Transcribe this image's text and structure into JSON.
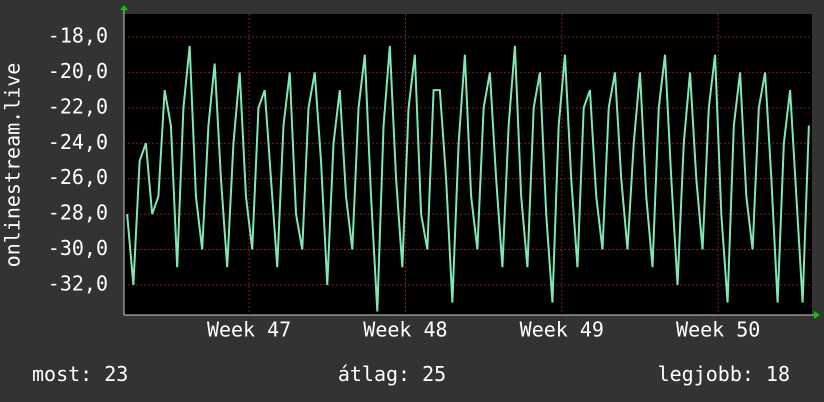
{
  "chart_data": {
    "type": "line",
    "y_label": "onlinestream.live",
    "x": [
      46.22,
      46.26,
      46.3,
      46.34,
      46.38,
      46.42,
      46.46,
      46.5,
      46.54,
      46.58,
      46.62,
      46.66,
      46.7,
      46.74,
      46.78,
      46.82,
      46.86,
      46.9,
      46.94,
      46.98,
      47.02,
      47.06,
      47.1,
      47.14,
      47.18,
      47.22,
      47.26,
      47.3,
      47.34,
      47.38,
      47.42,
      47.46,
      47.5,
      47.54,
      47.58,
      47.62,
      47.66,
      47.7,
      47.74,
      47.78,
      47.82,
      47.86,
      47.9,
      47.94,
      47.98,
      48.02,
      48.06,
      48.1,
      48.14,
      48.18,
      48.22,
      48.26,
      48.3,
      48.34,
      48.38,
      48.42,
      48.46,
      48.5,
      48.54,
      48.58,
      48.62,
      48.66,
      48.7,
      48.74,
      48.78,
      48.82,
      48.86,
      48.9,
      48.94,
      48.98,
      49.02,
      49.06,
      49.1,
      49.14,
      49.18,
      49.22,
      49.26,
      49.3,
      49.34,
      49.38,
      49.42,
      49.46,
      49.5,
      49.54,
      49.58,
      49.62,
      49.66,
      49.7,
      49.74,
      49.78,
      49.82,
      49.86,
      49.9,
      49.94,
      49.98,
      50.02,
      50.06,
      50.1,
      50.14,
      50.18,
      50.22,
      50.26,
      50.3,
      50.34,
      50.38,
      50.42,
      50.46,
      50.5,
      50.54,
      50.58
    ],
    "series": [
      {
        "color": "#7fe8b4",
        "values": [
          -28,
          -32,
          -25,
          -24,
          -28,
          -27,
          -21,
          -23,
          -31,
          -22,
          -18.5,
          -27,
          -30,
          -23,
          -19.5,
          -26,
          -31,
          -24,
          -20,
          -27,
          -30,
          -22,
          -21,
          -26,
          -31,
          -23,
          -20,
          -28,
          -30,
          -22,
          -20,
          -25,
          -32,
          -24,
          -21,
          -27,
          -30,
          -22,
          -19,
          -27,
          -33.5,
          -23,
          -18.5,
          -26,
          -31,
          -22,
          -19,
          -28,
          -30,
          -21,
          -21,
          -26,
          -33,
          -24,
          -19,
          -27,
          -30,
          -22,
          -20,
          -26,
          -31,
          -23,
          -18.5,
          -27,
          -31,
          -22,
          -20,
          -28,
          -33,
          -23,
          -19,
          -26,
          -31,
          -22,
          -21,
          -27,
          -30,
          -22,
          -20,
          -26,
          -30,
          -24,
          -20,
          -27,
          -31,
          -22,
          -19,
          -26,
          -32,
          -24,
          -20,
          -26,
          -30,
          -22,
          -19,
          -28,
          -33,
          -23,
          -20,
          -27,
          -30,
          -22,
          -20,
          -26,
          -33,
          -24,
          -21,
          -27,
          -33,
          -23
        ]
      }
    ],
    "xlim": [
      46.2,
      50.6
    ],
    "xticks": [
      {
        "value": 47,
        "label": "Week 47"
      },
      {
        "value": 48,
        "label": "Week 48"
      },
      {
        "value": 49,
        "label": "Week 49"
      },
      {
        "value": 50,
        "label": "Week 50"
      }
    ],
    "ylim": [
      -33.7,
      -16.7
    ],
    "yticks": [
      {
        "value": -32,
        "label": "-32,0"
      },
      {
        "value": -30,
        "label": "-30,0"
      },
      {
        "value": -28,
        "label": "-28,0"
      },
      {
        "value": -26,
        "label": "-26,0"
      },
      {
        "value": -24,
        "label": "-24,0"
      },
      {
        "value": -22,
        "label": "-22,0"
      },
      {
        "value": -20,
        "label": "-20,0"
      },
      {
        "value": -18,
        "label": "-18,0"
      }
    ],
    "grid": true,
    "stats": [
      {
        "label": "most:",
        "value": 23
      },
      {
        "label": "átlag:",
        "value": 25
      },
      {
        "label": "legjobb:",
        "value": 18
      }
    ]
  }
}
